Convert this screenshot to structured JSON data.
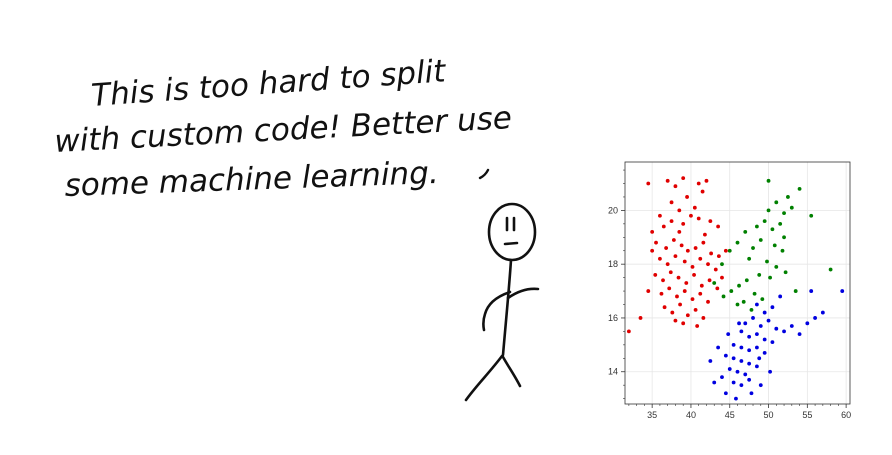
{
  "caption": {
    "lines": [
      "This is too hard to split",
      "with custom code! Better use",
      "some machine learning."
    ]
  },
  "colors": {
    "ink": "#111111",
    "grid": "#e6e6e6",
    "axis": "#333333",
    "cluster_a": "#e00000",
    "cluster_b": "#008000",
    "cluster_c": "#0000e0"
  },
  "chart_data": {
    "type": "scatter",
    "title": "",
    "xlabel": "",
    "ylabel": "",
    "xlim": [
      31.5,
      60.5
    ],
    "ylim": [
      12.8,
      21.8
    ],
    "xticks": [
      35,
      40,
      45,
      50,
      55,
      60
    ],
    "yticks": [
      14,
      16,
      18,
      20
    ],
    "grid": true,
    "legend": "none",
    "series": [
      {
        "color": "#e00000",
        "points": [
          [
            32.0,
            15.5
          ],
          [
            34.5,
            21.0
          ],
          [
            37.0,
            21.1
          ],
          [
            38.0,
            20.9
          ],
          [
            39.0,
            21.2
          ],
          [
            41.0,
            21.0
          ],
          [
            42.0,
            21.1
          ],
          [
            39.5,
            20.5
          ],
          [
            41.5,
            20.7
          ],
          [
            37.5,
            20.3
          ],
          [
            38.5,
            20.0
          ],
          [
            40.5,
            20.1
          ],
          [
            36.0,
            19.8
          ],
          [
            35.0,
            19.2
          ],
          [
            36.5,
            19.4
          ],
          [
            37.5,
            19.6
          ],
          [
            39.0,
            19.5
          ],
          [
            40.0,
            19.8
          ],
          [
            41.0,
            19.7
          ],
          [
            42.5,
            19.6
          ],
          [
            43.5,
            19.4
          ],
          [
            35.5,
            18.8
          ],
          [
            36.8,
            18.6
          ],
          [
            37.8,
            18.9
          ],
          [
            38.8,
            18.7
          ],
          [
            39.6,
            18.5
          ],
          [
            40.6,
            18.6
          ],
          [
            41.6,
            18.8
          ],
          [
            42.6,
            18.4
          ],
          [
            43.6,
            18.3
          ],
          [
            36.0,
            18.2
          ],
          [
            37.0,
            18.0
          ],
          [
            38.0,
            18.3
          ],
          [
            39.2,
            18.1
          ],
          [
            40.2,
            17.9
          ],
          [
            41.2,
            18.2
          ],
          [
            42.2,
            18.0
          ],
          [
            43.2,
            17.8
          ],
          [
            44.0,
            17.5
          ],
          [
            35.4,
            17.6
          ],
          [
            36.4,
            17.4
          ],
          [
            37.4,
            17.7
          ],
          [
            38.4,
            17.5
          ],
          [
            39.4,
            17.3
          ],
          [
            40.4,
            17.6
          ],
          [
            41.4,
            17.2
          ],
          [
            42.4,
            17.4
          ],
          [
            43.4,
            17.1
          ],
          [
            36.2,
            16.9
          ],
          [
            37.2,
            17.1
          ],
          [
            38.2,
            16.8
          ],
          [
            39.2,
            17.0
          ],
          [
            40.2,
            16.7
          ],
          [
            41.2,
            16.9
          ],
          [
            42.2,
            16.6
          ],
          [
            36.6,
            16.4
          ],
          [
            37.6,
            16.2
          ],
          [
            38.6,
            16.5
          ],
          [
            39.6,
            16.1
          ],
          [
            40.6,
            16.3
          ],
          [
            41.6,
            16.0
          ],
          [
            38.0,
            15.9
          ],
          [
            39.0,
            15.8
          ],
          [
            40.8,
            15.7
          ],
          [
            44.5,
            18.5
          ],
          [
            35.0,
            18.5
          ],
          [
            34.5,
            17.0
          ],
          [
            33.5,
            16.0
          ],
          [
            38.5,
            19.2
          ],
          [
            41.8,
            19.1
          ]
        ]
      },
      {
        "color": "#008000",
        "points": [
          [
            54.0,
            20.8
          ],
          [
            52.5,
            20.5
          ],
          [
            51.0,
            20.3
          ],
          [
            53.0,
            20.1
          ],
          [
            50.0,
            20.0
          ],
          [
            52.0,
            19.9
          ],
          [
            55.5,
            19.8
          ],
          [
            49.5,
            19.6
          ],
          [
            51.5,
            19.5
          ],
          [
            50.5,
            19.3
          ],
          [
            48.5,
            19.4
          ],
          [
            47.0,
            19.2
          ],
          [
            52.0,
            19.0
          ],
          [
            49.0,
            18.9
          ],
          [
            50.8,
            18.7
          ],
          [
            51.8,
            18.5
          ],
          [
            48.0,
            18.6
          ],
          [
            46.0,
            18.8
          ],
          [
            45.0,
            18.5
          ],
          [
            47.5,
            18.2
          ],
          [
            49.8,
            18.1
          ],
          [
            51.0,
            17.9
          ],
          [
            52.2,
            17.7
          ],
          [
            50.2,
            17.5
          ],
          [
            48.8,
            17.6
          ],
          [
            47.2,
            17.4
          ],
          [
            46.2,
            17.2
          ],
          [
            45.2,
            17.0
          ],
          [
            44.2,
            16.8
          ],
          [
            46.8,
            16.6
          ],
          [
            48.2,
            16.9
          ],
          [
            49.2,
            16.7
          ],
          [
            43.0,
            17.3
          ],
          [
            44.0,
            18.0
          ],
          [
            58.0,
            17.8
          ],
          [
            50.0,
            21.1
          ],
          [
            53.5,
            17.0
          ],
          [
            47.8,
            16.3
          ],
          [
            46.0,
            16.5
          ]
        ]
      },
      {
        "color": "#0000e0",
        "points": [
          [
            48.5,
            16.5
          ],
          [
            49.5,
            16.2
          ],
          [
            50.5,
            16.4
          ],
          [
            48.0,
            16.0
          ],
          [
            47.0,
            15.8
          ],
          [
            49.0,
            15.7
          ],
          [
            50.0,
            15.9
          ],
          [
            51.0,
            15.6
          ],
          [
            46.5,
            15.5
          ],
          [
            47.5,
            15.3
          ],
          [
            48.5,
            15.4
          ],
          [
            49.5,
            15.2
          ],
          [
            50.5,
            15.1
          ],
          [
            45.5,
            15.0
          ],
          [
            46.5,
            14.9
          ],
          [
            47.5,
            14.8
          ],
          [
            48.5,
            14.9
          ],
          [
            49.5,
            14.7
          ],
          [
            44.5,
            14.6
          ],
          [
            45.5,
            14.5
          ],
          [
            46.5,
            14.4
          ],
          [
            47.5,
            14.3
          ],
          [
            48.5,
            14.2
          ],
          [
            45.0,
            14.1
          ],
          [
            46.0,
            14.0
          ],
          [
            47.0,
            13.9
          ],
          [
            44.0,
            13.8
          ],
          [
            45.5,
            13.6
          ],
          [
            46.5,
            13.5
          ],
          [
            47.5,
            13.7
          ],
          [
            43.0,
            13.6
          ],
          [
            44.5,
            13.2
          ],
          [
            45.8,
            13.0
          ],
          [
            43.5,
            14.9
          ],
          [
            44.8,
            15.4
          ],
          [
            52.0,
            15.5
          ],
          [
            53.0,
            15.7
          ],
          [
            54.0,
            15.4
          ],
          [
            55.0,
            15.8
          ],
          [
            56.0,
            16.0
          ],
          [
            57.0,
            16.2
          ],
          [
            55.5,
            17.0
          ],
          [
            59.5,
            17.0
          ],
          [
            42.5,
            14.4
          ],
          [
            46.2,
            15.8
          ],
          [
            48.8,
            14.5
          ],
          [
            50.2,
            14.0
          ],
          [
            49.0,
            13.5
          ],
          [
            47.8,
            13.2
          ],
          [
            51.5,
            16.8
          ]
        ]
      }
    ]
  }
}
